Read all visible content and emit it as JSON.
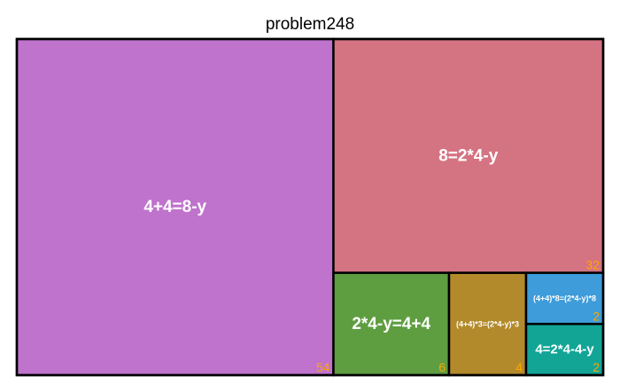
{
  "chart_data": {
    "type": "treemap",
    "title": "problem248",
    "value_label_color": "#ffa500",
    "border_color": "#000000",
    "items": [
      {
        "label": "4+4=8-y",
        "value": 54,
        "color": "#bf73cc"
      },
      {
        "label": "8=2*4-y",
        "value": 32,
        "color": "#d47382"
      },
      {
        "label": "2*4-y=4+4",
        "value": 6,
        "color": "#5e9e40"
      },
      {
        "label": "(4+4)*3=(2*4-y)*3",
        "value": 4,
        "color": "#b38a2b"
      },
      {
        "label": "(4+4)*8=(2*4-y)*8",
        "value": 2,
        "color": "#3d9cd9"
      },
      {
        "label": "4=2*4-4-y",
        "value": 2,
        "color": "#12a596"
      }
    ]
  }
}
